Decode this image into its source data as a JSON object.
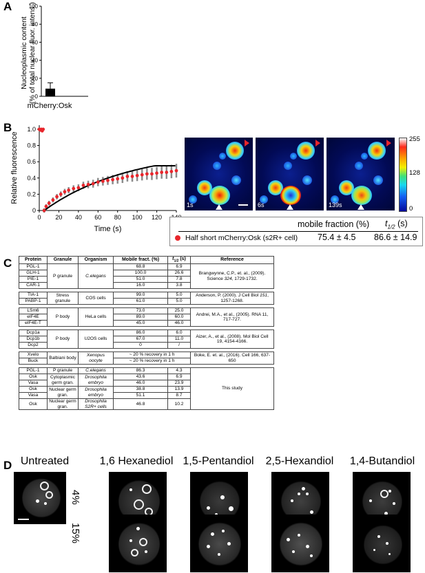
{
  "panels": {
    "A": {
      "letter": "A",
      "chart_data": {
        "type": "bar",
        "categories": [
          "mCherry:Osk"
        ],
        "values": [
          8.5
        ],
        "errors": [
          6.5
        ],
        "ylabel_line1": "Nucleoplasmic content",
        "ylabel_line2": "(% of total nuclear fluor. intens.)",
        "ylim": [
          0,
          100
        ],
        "yticks": [
          "0",
          "20",
          "40",
          "60",
          "80",
          "100"
        ],
        "bar_color": "#000000"
      }
    },
    "B": {
      "letter": "B",
      "chart_data": {
        "type": "scatter",
        "xlabel": "Time (s)",
        "ylabel": "Relative fluorescence",
        "xlim": [
          0,
          140
        ],
        "ylim": [
          0,
          1.05
        ],
        "xticks": [
          "0",
          "20",
          "40",
          "60",
          "80",
          "100",
          "120",
          "140"
        ],
        "yticks": [
          "0",
          "0.2",
          "0.4",
          "0.6",
          "0.8",
          "1.0"
        ],
        "series": [
          {
            "values_x": [
              0,
              1,
              2,
              3,
              4,
              5,
              7,
              10,
              14,
              18,
              22,
              26,
              30,
              35,
              40,
              45,
              50,
              55,
              60,
              65,
              70,
              75,
              80,
              85,
              90,
              95,
              100,
              105,
              110,
              115,
              120,
              125,
              130,
              135,
              140
            ],
            "values_y": [
              1.0,
              0.99,
              1.0,
              0.98,
              1.0,
              0.0,
              0.05,
              0.09,
              0.13,
              0.17,
              0.2,
              0.23,
              0.25,
              0.27,
              0.28,
              0.31,
              0.32,
              0.33,
              0.35,
              0.36,
              0.37,
              0.38,
              0.39,
              0.4,
              0.42,
              0.42,
              0.43,
              0.44,
              0.45,
              0.45,
              0.46,
              0.47,
              0.47,
              0.48,
              0.49
            ],
            "color": "#e8262c"
          }
        ],
        "fit_color": "#000000",
        "error_color": "#8c8c8c"
      },
      "frames": [
        {
          "label": "1s"
        },
        {
          "label": "6s"
        },
        {
          "label": "139s"
        }
      ],
      "colorbar": {
        "max": "255",
        "mid": "128",
        "min": "0"
      },
      "frap_table": {
        "header_mobile": "mobile fraction (%)",
        "header_t": "t",
        "header_t_sub": "1/2",
        "header_t_unit": " (s)",
        "row_label": "Half short mCherry:Osk (s2R+ cell)",
        "mobile": "75.4 ± 4.5",
        "thalf": "86.6 ± 14.9",
        "marker_color": "#e8262c"
      }
    },
    "C": {
      "letter": "C",
      "headers": [
        "Protein",
        "Granule",
        "Organism",
        "Mobile fract. (%)",
        "t",
        "1/2",
        " (s)",
        "Reference"
      ],
      "groups": [
        {
          "rows": [
            [
              "PGL-1",
              "68.8",
              "6.9"
            ],
            [
              "GLH-1",
              "100.0",
              "26.6"
            ],
            [
              "PIE-1",
              "51.0",
              "7.8"
            ],
            [
              "CAR-1",
              "16.0",
              "3.8"
            ]
          ],
          "granule": "P granule",
          "organism": "C.elegans",
          "ref_a": "Brangwynne, C.P., et. al., (2009). Science ",
          "ref_b": "324",
          "ref_c": ", 1729-1732."
        },
        {
          "rows": [
            [
              "TIA-1",
              "99.0",
              "5.0"
            ],
            [
              "PABP-1",
              "61.0",
              "5.0"
            ]
          ],
          "granule": "Stress granule",
          "organism": "COS cells",
          "ref_a": "Anderson, P. (2000). J Cell Biol ",
          "ref_b": "151",
          "ref_c": ", 1257-1268."
        },
        {
          "rows": [
            [
              "LSm6",
              "73.0",
              "25.0"
            ],
            [
              "eIF4E",
              "89.0",
              "60.0"
            ],
            [
              "eIF4E-T",
              "45.0",
              "46.0"
            ]
          ],
          "granule": "P body",
          "organism": "HeLa cells",
          "ref_a": "Andrei, M.A., et al., (2005). RNA 11, 717-727.",
          "ref_b": "",
          "ref_c": ""
        },
        {
          "rows": [
            [
              "Dcp1a",
              "86.0",
              "6.0"
            ],
            [
              "Dcp1b",
              "67.0",
              "11.0"
            ],
            [
              "Dcp2",
              "0",
              "/"
            ]
          ],
          "granule": "P body",
          "organism": "U2OS cells",
          "ref_a": "Aizer, A., et al., (2008). Mol Biol Cell 19, 4154-4166.",
          "ref_b": "",
          "ref_c": ""
        },
        {
          "rows": [
            [
              "Xvelo",
              "~ 20 % recovery in 1 h"
            ],
            [
              "Buck",
              "~ 20 % recovery in 1 h"
            ]
          ],
          "granule": "Balbiani body",
          "organism": "Xenopus oocyte",
          "ref_a": "Boke, E. et. al., (2016). Cell 166, 637-650",
          "ref_b": "",
          "ref_c": ""
        }
      ],
      "study": {
        "rows": [
          [
            "PGL-1",
            "P granule",
            "C.elegans",
            "86.3",
            "4.3"
          ],
          [
            "Osk",
            "Cytoplasmic germ gran.",
            "Drosophila embryo",
            "43.6",
            "6.9"
          ],
          [
            "Vasa",
            "",
            "",
            "46.0",
            "23.9"
          ],
          [
            "Osk",
            "Nuclear germ gran.",
            "Drosophila embryo",
            "38.8",
            "13.9"
          ],
          [
            "Vasa",
            "",
            "",
            "51.1",
            "8.7"
          ],
          [
            "Osk",
            "Nuclear germ gran.",
            "Drosophila S2R+ cells",
            "46.8",
            "10.2"
          ]
        ],
        "reference": "This study"
      }
    },
    "D": {
      "letter": "D",
      "columns": [
        "Untreated",
        "1,6 Hexanediol",
        "1,5-Pentandiol",
        "2,5-Hexandiol",
        "1,4-Butandiol"
      ],
      "rows": [
        "4%",
        "15%"
      ]
    }
  }
}
